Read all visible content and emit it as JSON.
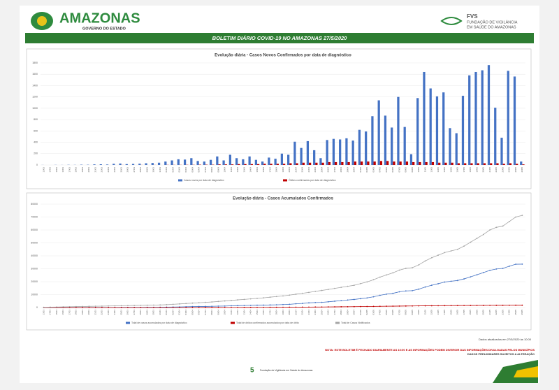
{
  "header": {
    "state": "AMAZONAS",
    "state_sub": "GOVERNO DO ESTADO",
    "agency": "FVS",
    "agency_full_1": "FUNDAÇÃO DE VIGILÂNCIA",
    "agency_full_2": "EM SAÚDE DO AMAZONAS",
    "banner": "BOLETIM DIÁRIO COVID-19 NO AMAZONAS 27/5/2020"
  },
  "footer": {
    "updated": "Dados atualizados em 27/5/2020 às 10:00",
    "note": "NOTA: ESTE BOLETIM É FECHADO DIARIAMENTE AS 10:00 E AS INFORMAÇÕES PODEM DIVERGIR DAS INFORMAÇÕES DIVULGADAS PELOS MUNICÍPIOS",
    "note2": "DADOS PRELIMINARES SUJEITOS A ALTERAÇÃO",
    "logo_text": "Fundação de Vigilância em Saúde do Amazonas"
  },
  "chart_data": [
    {
      "type": "bar",
      "title": "Evolução diária - Casos Novos Confirmados por data de diagnóstico",
      "legend": "bottom",
      "grid": true,
      "categories": [
        "13/03",
        "14/03",
        "15/03",
        "16/03",
        "17/03",
        "18/03",
        "19/03",
        "20/03",
        "21/03",
        "22/03",
        "23/03",
        "24/03",
        "25/03",
        "26/03",
        "27/03",
        "28/03",
        "29/03",
        "30/03",
        "31/03",
        "01/04",
        "02/04",
        "03/04",
        "04/04",
        "05/04",
        "06/04",
        "07/04",
        "08/04",
        "09/04",
        "10/04",
        "11/04",
        "12/04",
        "13/04",
        "14/04",
        "15/04",
        "16/04",
        "17/04",
        "18/04",
        "19/04",
        "20/04",
        "21/04",
        "22/04",
        "23/04",
        "24/04",
        "25/04",
        "26/04",
        "27/04",
        "28/04",
        "29/04",
        "30/04",
        "01/05",
        "02/05",
        "03/05",
        "04/05",
        "05/05",
        "06/05",
        "07/05",
        "08/05",
        "09/05",
        "10/05",
        "11/05",
        "12/05",
        "13/05",
        "14/05",
        "15/05",
        "16/05",
        "17/05",
        "18/05",
        "19/05",
        "20/05",
        "21/05",
        "22/05",
        "23/05",
        "24/05",
        "25/05",
        "26/05"
      ],
      "ylim": [
        0,
        1800
      ],
      "yticks": [
        0,
        200,
        400,
        600,
        800,
        1000,
        1200,
        1400,
        1600,
        1800
      ],
      "series": [
        {
          "name": "Casos novos por data de diagnóstico",
          "color": "#4472c4",
          "values": [
            1,
            0,
            2,
            1,
            3,
            2,
            5,
            4,
            10,
            12,
            8,
            20,
            25,
            15,
            18,
            22,
            30,
            35,
            40,
            60,
            80,
            100,
            95,
            120,
            70,
            60,
            90,
            150,
            80,
            180,
            120,
            100,
            150,
            90,
            60,
            130,
            110,
            200,
            180,
            410,
            300,
            420,
            260,
            120,
            440,
            460,
            450,
            470,
            430,
            620,
            590,
            860,
            1140,
            870,
            660,
            1200,
            670,
            190,
            1180,
            1640,
            1350,
            1210,
            1280,
            650,
            560,
            1220,
            1580,
            1640,
            1670,
            1761,
            1010,
            480,
            1660,
            1560,
            60
          ]
        },
        {
          "name": "Óbitos confirmados por data de diagnóstico",
          "color": "#c00000",
          "values": [
            0,
            0,
            0,
            0,
            0,
            0,
            0,
            0,
            0,
            0,
            0,
            0,
            1,
            0,
            0,
            1,
            0,
            1,
            0,
            2,
            2,
            2,
            3,
            3,
            5,
            5,
            5,
            10,
            10,
            10,
            15,
            15,
            15,
            15,
            20,
            20,
            20,
            20,
            30,
            30,
            40,
            40,
            40,
            40,
            50,
            50,
            50,
            50,
            60,
            60,
            60,
            60,
            70,
            70,
            60,
            60,
            60,
            50,
            50,
            50,
            50,
            40,
            40,
            40,
            30,
            30,
            30,
            30,
            30,
            30,
            30,
            20,
            30,
            20,
            10
          ]
        }
      ]
    },
    {
      "type": "line",
      "title": "Evolução diária - Casos Acumulados Confirmados",
      "legend": "bottom",
      "grid": true,
      "categories": [
        "13/03",
        "14/03",
        "15/03",
        "16/03",
        "17/03",
        "18/03",
        "19/03",
        "20/03",
        "21/03",
        "22/03",
        "23/03",
        "24/03",
        "25/03",
        "26/03",
        "27/03",
        "28/03",
        "29/03",
        "30/03",
        "31/03",
        "01/04",
        "02/04",
        "03/04",
        "04/04",
        "05/04",
        "06/04",
        "07/04",
        "08/04",
        "09/04",
        "10/04",
        "11/04",
        "12/04",
        "13/04",
        "14/04",
        "15/04",
        "16/04",
        "17/04",
        "18/04",
        "19/04",
        "20/04",
        "21/04",
        "22/04",
        "23/04",
        "24/04",
        "25/04",
        "26/04",
        "27/04",
        "28/04",
        "29/04",
        "30/04",
        "01/05",
        "02/05",
        "03/05",
        "04/05",
        "05/05",
        "06/05",
        "07/05",
        "08/05",
        "09/05",
        "10/05",
        "11/05",
        "12/05",
        "13/05",
        "14/05",
        "15/05",
        "16/05",
        "17/05",
        "18/05",
        "19/05",
        "20/05",
        "21/05",
        "22/05",
        "23/05",
        "24/05",
        "25/05",
        "26/05"
      ],
      "ylim": [
        0,
        80000
      ],
      "yticks": [
        0,
        10000,
        20000,
        30000,
        40000,
        50000,
        60000,
        70000,
        80000
      ],
      "series": [
        {
          "name": "Total de casos acumulados por data de diagnóstico",
          "color": "#4472c4",
          "values": [
            1,
            1,
            3,
            4,
            7,
            9,
            14,
            18,
            28,
            40,
            48,
            68,
            93,
            108,
            126,
            148,
            178,
            213,
            253,
            313,
            393,
            493,
            588,
            708,
            778,
            838,
            928,
            1078,
            1158,
            1338,
            1458,
            1558,
            1708,
            1798,
            1858,
            1988,
            2098,
            2298,
            2478,
            2888,
            3188,
            3608,
            3868,
            3988,
            4428,
            4888,
            5338,
            5808,
            6238,
            6858,
            7448,
            8308,
            9448,
            10318,
            10978,
            12178,
            12848,
            13038,
            14218,
            15858,
            17208,
            18418,
            19698,
            20348,
            20908,
            22128,
            23708,
            25348,
            27018,
            28779,
            29789,
            30269,
            31929,
            33489,
            33549
          ]
        },
        {
          "name": "Total de óbitos confirmados acumulados por data de óbito",
          "color": "#c00000",
          "values": [
            0,
            0,
            0,
            0,
            0,
            0,
            0,
            0,
            0,
            0,
            0,
            0,
            1,
            1,
            1,
            2,
            2,
            3,
            3,
            5,
            7,
            9,
            12,
            15,
            20,
            25,
            30,
            40,
            50,
            60,
            75,
            90,
            105,
            120,
            140,
            160,
            180,
            200,
            230,
            260,
            300,
            340,
            380,
            420,
            470,
            520,
            570,
            620,
            680,
            740,
            800,
            860,
            930,
            1000,
            1060,
            1120,
            1180,
            1230,
            1280,
            1330,
            1380,
            1420,
            1460,
            1500,
            1530,
            1560,
            1590,
            1620,
            1650,
            1680,
            1710,
            1730,
            1760,
            1780,
            1790
          ]
        },
        {
          "name": "Total de Casos Notificados",
          "color": "#a5a5a5",
          "values": [
            200,
            300,
            400,
            500,
            600,
            700,
            800,
            900,
            1000,
            1100,
            1200,
            1300,
            1400,
            1500,
            1600,
            1700,
            1800,
            1900,
            2000,
            2200,
            2500,
            2800,
            3100,
            3400,
            3700,
            4000,
            4300,
            4700,
            5100,
            5500,
            5900,
            6300,
            6700,
            7100,
            7500,
            8000,
            8500,
            9000,
            9600,
            10300,
            11000,
            11700,
            12500,
            13200,
            14000,
            14800,
            15600,
            16400,
            17200,
            18500,
            19800,
            21500,
            23500,
            25200,
            26800,
            28900,
            30300,
            30800,
            33000,
            36000,
            38500,
            40500,
            42500,
            43800,
            45000,
            47500,
            50500,
            53500,
            56500,
            60000,
            62000,
            63000,
            66500,
            70000,
            71300
          ]
        }
      ]
    }
  ]
}
